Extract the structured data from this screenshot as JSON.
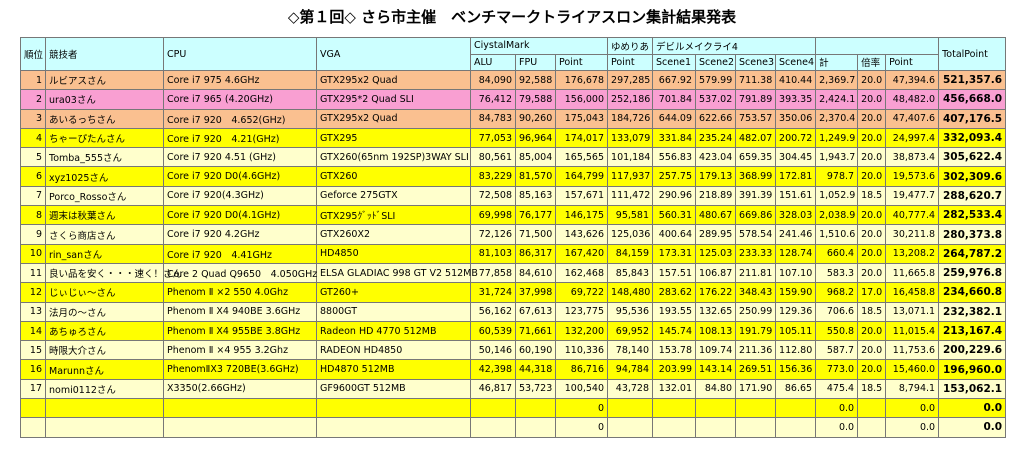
{
  "title": "◇第１回◇ さら市主催　ベンチマークトライアスロン集計結果発表",
  "table": {
    "head": [
      "順位",
      "競技者",
      "CPU",
      "VGA",
      "CiystalMark",
      "ゆめりあ",
      "デビルメイクライ4",
      "TotalPoint"
    ],
    "subhead": [
      "ALU",
      "FPU",
      "Point",
      "Point",
      "Scene1",
      "Scene2",
      "Scene3",
      "Scene4",
      "計",
      "倍率",
      "Point"
    ],
    "rows": [
      {
        "fill": "#fac090",
        "cells": [
          1,
          "ルビアスさん",
          "Core i7 975 4.6GHz",
          "GTX295x2 Quad",
          "84,090",
          "92,588",
          "176,678",
          "297,285",
          "667.92",
          "579.99",
          "711.38",
          "410.44",
          "2,369.7",
          "20.0",
          "47,394.6",
          "521,357.6"
        ]
      },
      {
        "fill": "#f99fd2",
        "cells": [
          2,
          "ura03さん",
          "Core i7 965 (4.20GHz)",
          "GTX295*2 Quad SLI",
          "76,412",
          "79,588",
          "156,000",
          "252,186",
          "701.84",
          "537.02",
          "791.89",
          "393.35",
          "2,424.1",
          "20.0",
          "48,482.0",
          "456,668.0"
        ]
      },
      {
        "fill": "#fac090",
        "cells": [
          3,
          "あいるっちさん",
          "Core i7 920　4.652(GHz)",
          "GTX295x2 Quad",
          "84,783",
          "90,260",
          "175,043",
          "184,726",
          "644.09",
          "622.66",
          "753.57",
          "350.06",
          "2,370.4",
          "20.0",
          "47,407.6",
          "407,176.5"
        ]
      },
      {
        "fill": "#ffff00",
        "cells": [
          4,
          "ちゃーぴたんさん",
          "Core i7 920　4.21(GHz)",
          "GTX295",
          "77,053",
          "96,964",
          "174,017",
          "133,079",
          "331.84",
          "235.24",
          "482.07",
          "200.72",
          "1,249.9",
          "20.0",
          "24,997.4",
          "332,093.4"
        ]
      },
      {
        "fill": "#ffffcc",
        "cells": [
          5,
          "Tomba_555さん",
          "Core i7 920 4.51 (GHz)",
          "GTX260(65nm 192SP)3WAY SLI",
          "80,561",
          "85,004",
          "165,565",
          "101,184",
          "556.83",
          "423.04",
          "659.35",
          "304.45",
          "1,943.7",
          "20.0",
          "38,873.4",
          "305,622.4"
        ]
      },
      {
        "fill": "#ffff00",
        "cells": [
          6,
          "xyz1025さん",
          "Core i7 920 D0(4.6GHz)",
          "GTX260",
          "83,229",
          "81,570",
          "164,799",
          "117,937",
          "257.75",
          "179.13",
          "368.99",
          "172.81",
          "978.7",
          "20.0",
          "19,573.6",
          "302,309.6"
        ]
      },
      {
        "fill": "#ffffcc",
        "cells": [
          7,
          "Porco_Rossoさん",
          "Core i7 920(4.3GHz)",
          "Geforce 275GTX",
          "72,508",
          "85,163",
          "157,671",
          "111,472",
          "290.96",
          "218.89",
          "391.39",
          "151.61",
          "1,052.9",
          "18.5",
          "19,477.7",
          "288,620.7"
        ]
      },
      {
        "fill": "#ffff00",
        "cells": [
          8,
          "週末は秋葉さん",
          "Core i7 920 D0(4.1GHz)",
          "GTX295ｸﾞｯﾄﾞSLI",
          "69,998",
          "76,177",
          "146,175",
          "95,581",
          "560.31",
          "480.67",
          "669.86",
          "328.03",
          "2,038.9",
          "20.0",
          "40,777.4",
          "282,533.4"
        ]
      },
      {
        "fill": "#ffffcc",
        "cells": [
          9,
          "さくら商店さん",
          "Core i7 920 4.2GHz",
          "GTX260X2",
          "72,126",
          "71,500",
          "143,626",
          "125,036",
          "400.64",
          "289.95",
          "578.54",
          "241.46",
          "1,510.6",
          "20.0",
          "30,211.8",
          "280,373.8"
        ]
      },
      {
        "fill": "#ffff00",
        "cells": [
          10,
          "rin_sanさん",
          "Core i7 920　4.41GHz",
          "HD4850",
          "81,103",
          "86,317",
          "167,420",
          "84,159",
          "173.31",
          "125.03",
          "233.33",
          "128.74",
          "660.4",
          "20.0",
          "13,208.2",
          "264,787.2"
        ]
      },
      {
        "fill": "#ffffcc",
        "cells": [
          11,
          "良い品を安く・・・速く！さん",
          "Core 2 Quad Q9650　4.050GHz",
          "ELSA GLADIAC 998 GT V2 512MB",
          "77,858",
          "84,610",
          "162,468",
          "85,843",
          "157.51",
          "106.87",
          "211.81",
          "107.10",
          "583.3",
          "20.0",
          "11,665.8",
          "259,976.8"
        ]
      },
      {
        "fill": "#ffff00",
        "cells": [
          12,
          "じぃじぃ～さん",
          "Phenom Ⅱ ×2 550 4.0Ghz",
          "GT260+",
          "31,724",
          "37,998",
          "69,722",
          "148,480",
          "283.62",
          "176.22",
          "348.43",
          "159.90",
          "968.2",
          "17.0",
          "16,458.8",
          "234,660.8"
        ]
      },
      {
        "fill": "#ffffcc",
        "cells": [
          13,
          "法月の～さん",
          "Phenom Ⅱ X4 940BE 3.6GHz",
          "8800GT",
          "56,162",
          "67,613",
          "123,775",
          "95,536",
          "193.55",
          "132.65",
          "250.99",
          "129.36",
          "706.6",
          "18.5",
          "13,071.1",
          "232,382.1"
        ]
      },
      {
        "fill": "#ffff00",
        "cells": [
          14,
          "あちゅろさん",
          "Phenom Ⅱ X4 955BE 3.8GHz",
          "Radeon HD 4770 512MB",
          "60,539",
          "71,661",
          "132,200",
          "69,952",
          "145.74",
          "108.13",
          "191.79",
          "105.11",
          "550.8",
          "20.0",
          "11,015.4",
          "213,167.4"
        ]
      },
      {
        "fill": "#ffffcc",
        "cells": [
          15,
          "時限大介さん",
          "Phenom Ⅱ ×4 955 3.2Ghz",
          "RADEON HD4850",
          "50,146",
          "60,190",
          "110,336",
          "78,140",
          "153.78",
          "109.74",
          "211.36",
          "112.80",
          "587.7",
          "20.0",
          "11,753.6",
          "200,229.6"
        ]
      },
      {
        "fill": "#ffff00",
        "cells": [
          16,
          "Marunnさん",
          "PhenomⅡX3 720BE(3.6GHz)",
          "HD4870 512MB",
          "42,398",
          "44,318",
          "86,716",
          "94,784",
          "203.99",
          "143.14",
          "269.51",
          "156.36",
          "773.0",
          "20.0",
          "15,460.0",
          "196,960.0"
        ]
      },
      {
        "fill": "#ffffcc",
        "cells": [
          17,
          "nomi0112さん",
          "X3350(2.66GHz)",
          "GF9600GT 512MB",
          "46,817",
          "53,723",
          "100,540",
          "43,728",
          "132.01",
          "84.80",
          "171.90",
          "86.65",
          "475.4",
          "18.5",
          "8,794.1",
          "153,062.1"
        ]
      },
      {
        "fill": "#ffff00",
        "cells": [
          null,
          null,
          null,
          null,
          null,
          null,
          "0",
          null,
          null,
          null,
          null,
          null,
          "0.0",
          null,
          "0.0",
          "0.0"
        ]
      },
      {
        "fill": "#ffffcc",
        "cells": [
          null,
          null,
          null,
          null,
          null,
          null,
          "0",
          null,
          null,
          null,
          null,
          null,
          "0.0",
          null,
          "0.0",
          "0.0"
        ]
      }
    ]
  }
}
